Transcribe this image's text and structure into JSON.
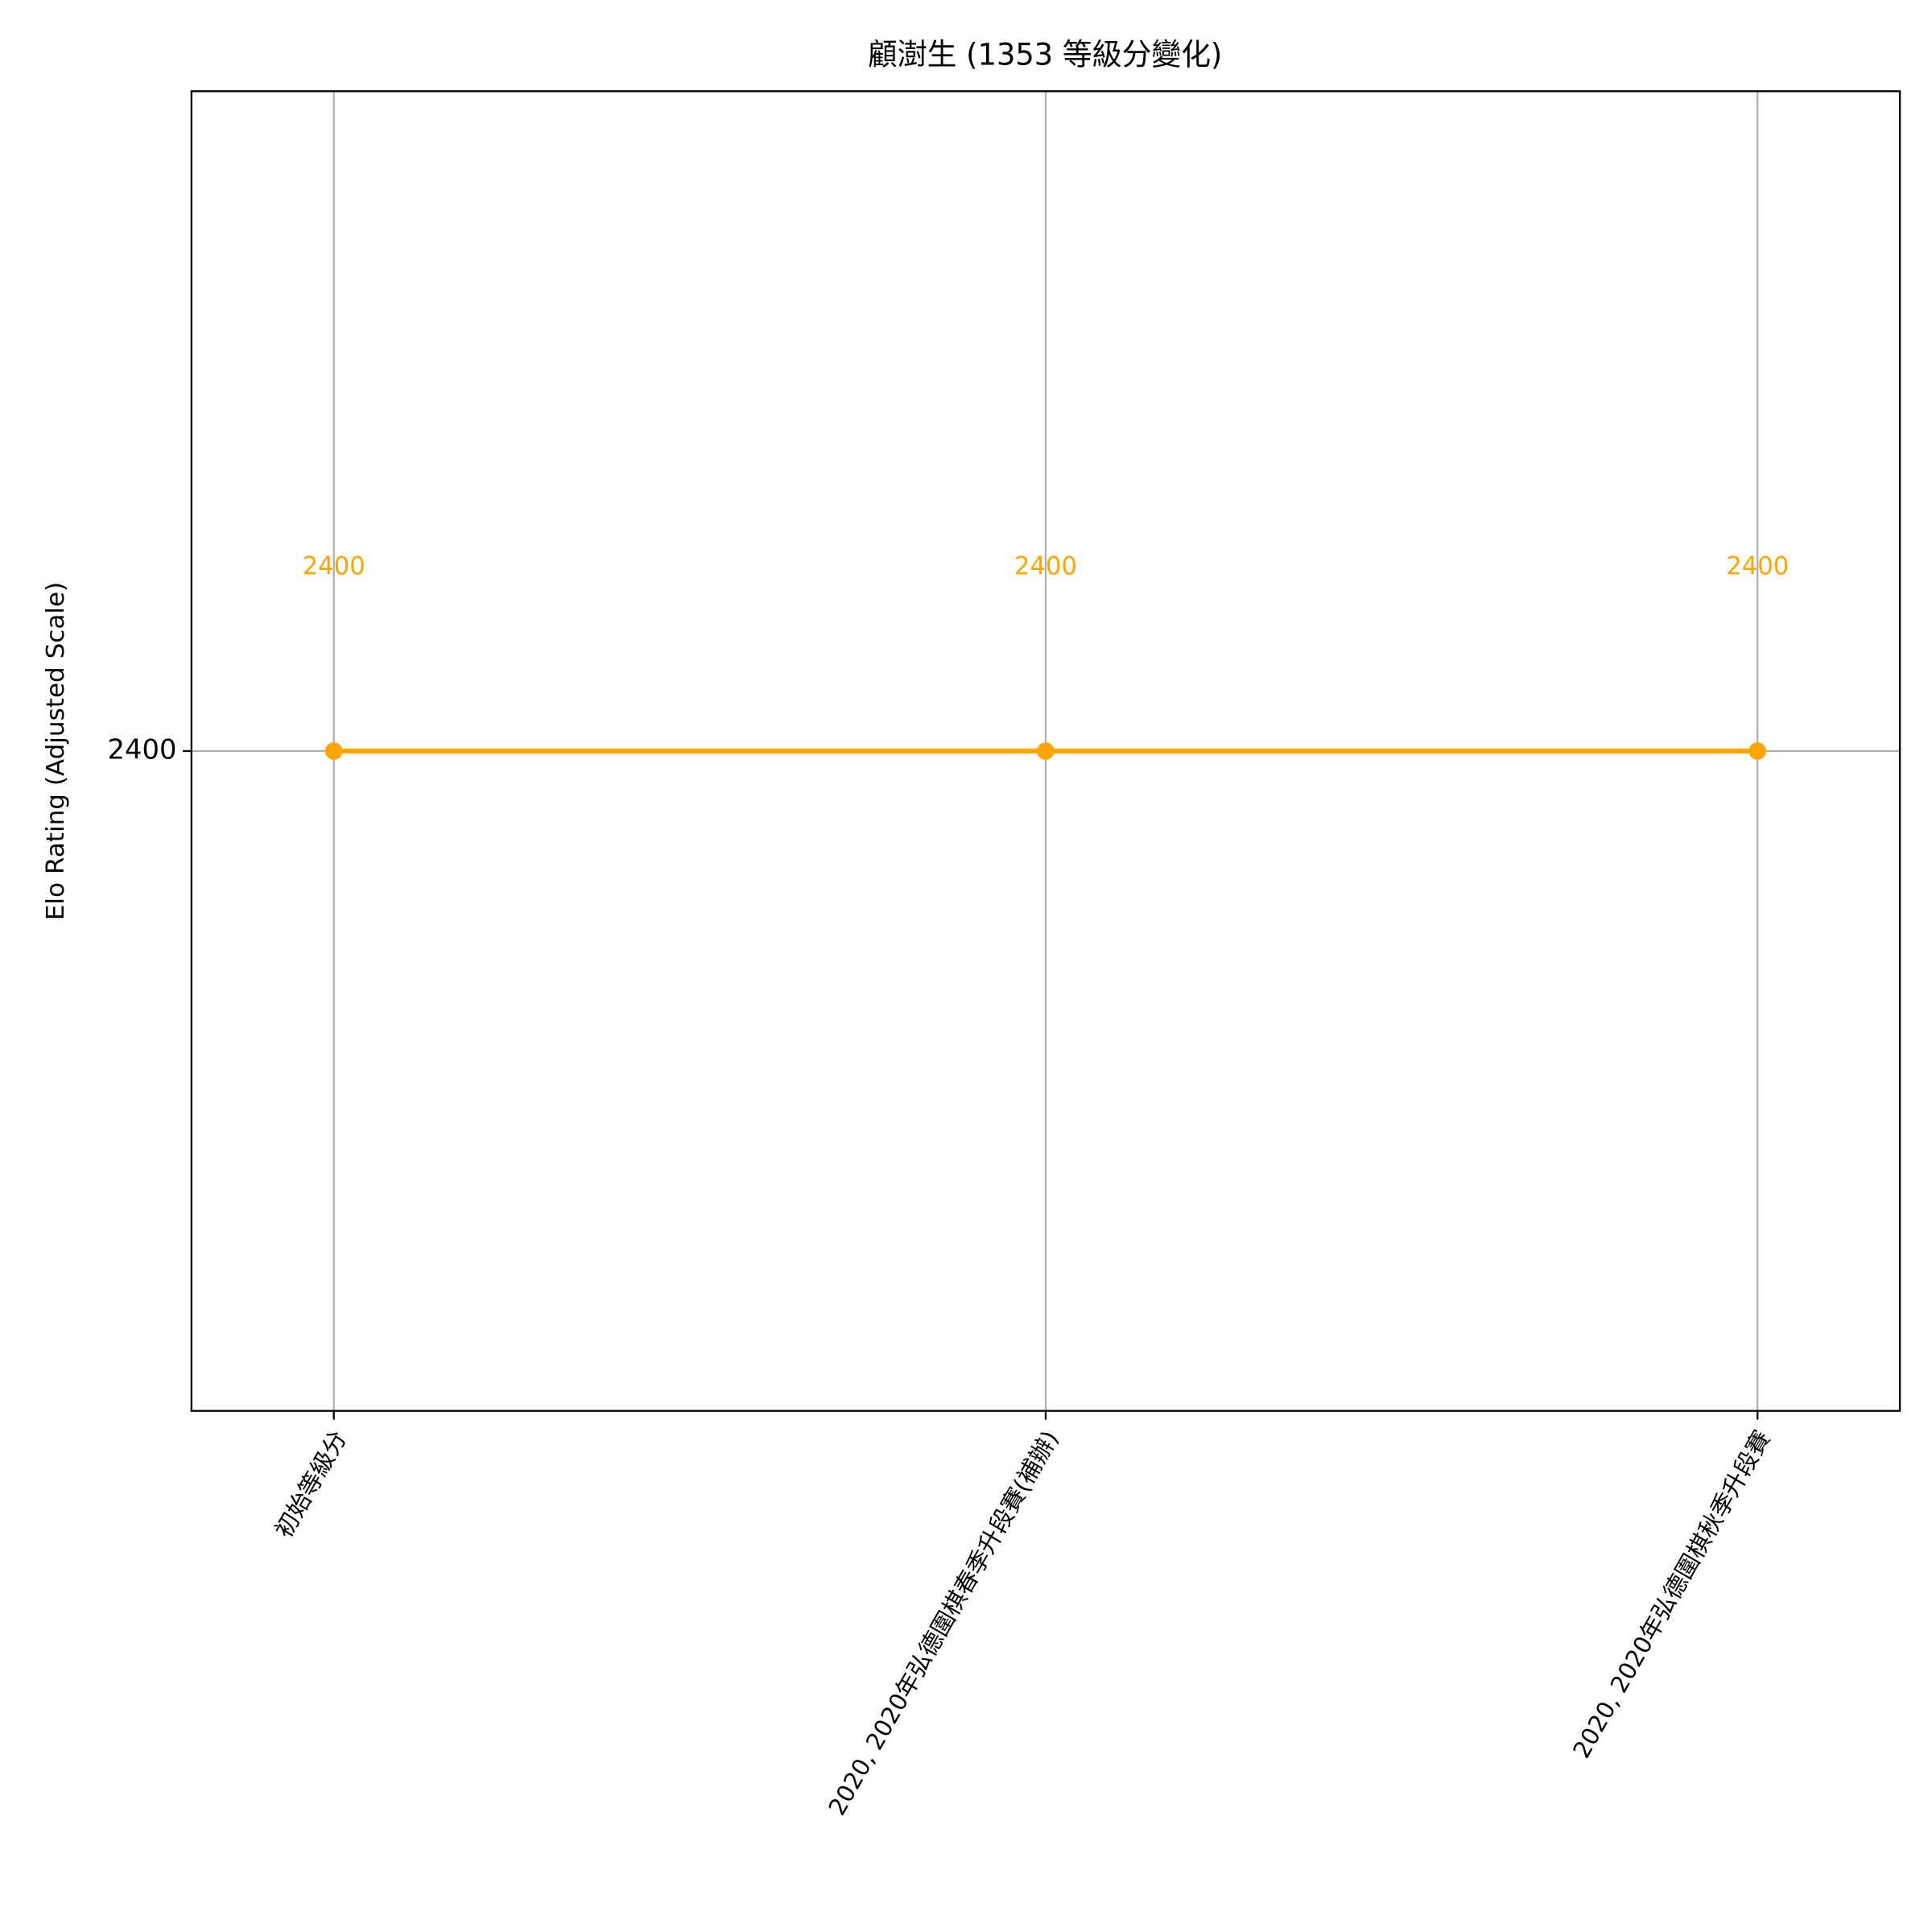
{
  "chart_data": {
    "type": "line",
    "title": "顧澍生 (1353 等級分變化)",
    "y_label": "Elo Rating (Adjusted Scale)",
    "categories": [
      "初始等級分",
      "2020, 2020年弘德圍棋春季升段賽(補辦)",
      "2020, 2020年弘德圍棋秋季升段賽"
    ],
    "values": [
      2400,
      2400,
      2400
    ],
    "color": "#ffa500",
    "ylim": [
      2397.6,
      2402.4
    ],
    "yticks": [
      2400
    ],
    "grid": true
  }
}
